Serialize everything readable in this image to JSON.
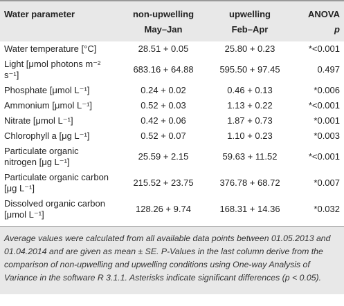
{
  "table": {
    "header": [
      [
        "Water parameter"
      ],
      [
        "non-upwelling",
        "May–Jan"
      ],
      [
        "upwelling",
        "Feb–Apr"
      ],
      [
        "ANOVA",
        "p"
      ]
    ],
    "rows": [
      [
        "Water temperature [°C]",
        "28.51 + 0.05",
        "25.80 + 0.23",
        "*<0.001"
      ],
      [
        "Light [μmol photons m⁻² s⁻¹]",
        "683.16 + 64.88",
        "595.50 + 97.45",
        "0.497"
      ],
      [
        "Phosphate [μmol L⁻¹]",
        "0.24 + 0.02",
        "0.46 + 0.13",
        "*0.006"
      ],
      [
        "Ammonium [μmol L⁻¹]",
        "0.52 + 0.03",
        "1.13 + 0.22",
        "*<0.001"
      ],
      [
        "Nitrate [μmol L⁻¹]",
        "0.42 + 0.06",
        "1.87 + 0.73",
        "*0.001"
      ],
      [
        "Chlorophyll a [μg L⁻¹]",
        "0.52 + 0.07",
        "1.10 + 0.23",
        "*0.003"
      ],
      [
        "Particulate organic nitrogen [μg L⁻¹]",
        "25.59 + 2.15",
        "59.63 + 11.52",
        "*<0.001"
      ],
      [
        "Particulate organic carbon [μg L⁻¹]",
        "215.52 + 23.75",
        "376.78 + 68.72",
        "*0.007"
      ],
      [
        "Dissolved organic carbon [μmol L⁻¹]",
        "128.26 + 9.74",
        "168.31 + 14.36",
        "*0.032"
      ]
    ],
    "footnote": "Average values were calculated from all available data points between 01.05.2013 and 01.04.2014 and are given as mean ± SE. P-Values in the last column derive from the comparison of non-upwelling and upwelling conditions using One-way Analysis of Variance in the software R 3.1.1. Asterisks indicate significant differences (p < 0.05)."
  }
}
